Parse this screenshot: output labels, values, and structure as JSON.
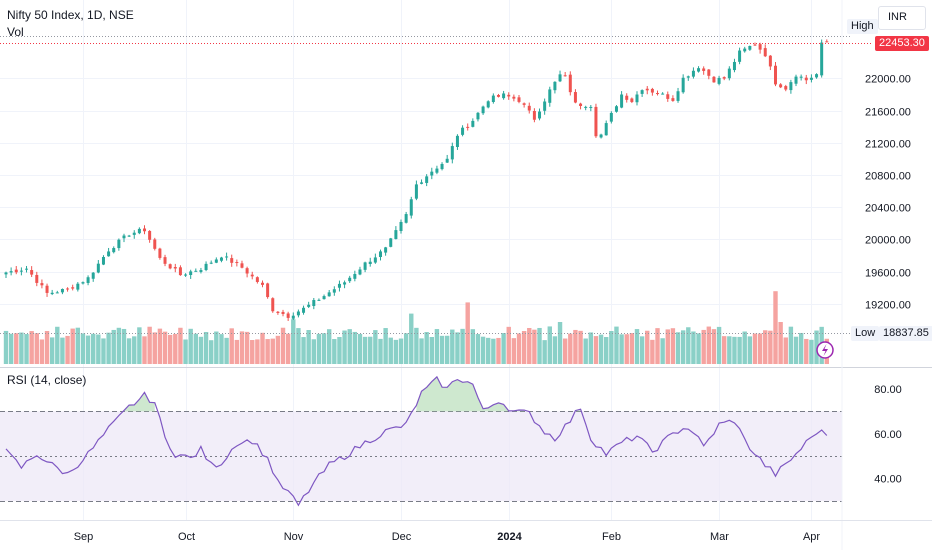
{
  "header": {
    "title": "Nifty 50 Index, 1D, NSE",
    "vol_label": "Vol",
    "rsi_label": "RSI (14, close)",
    "currency": "INR"
  },
  "markers": {
    "high_label": "High",
    "last_price": "22453.30",
    "low_label": "Low",
    "low_price": "18837.85"
  },
  "colors": {
    "up": "#26a69a",
    "down": "#ef5350",
    "vol_up": "#8ad0c7",
    "vol_down": "#f5a3a0",
    "rsi_line": "#7e57c2",
    "rsi_band": "#ede7f6",
    "last_tag": "#f23645"
  },
  "chart_data": [
    {
      "type": "candlestick",
      "price_axis": [
        19200,
        19600,
        20000,
        20400,
        20800,
        21200,
        21600,
        22000
      ],
      "price_axis_labels": [
        "19200.00",
        "19600.00",
        "20000.00",
        "20400.00",
        "20800.00",
        "21200.00",
        "21600.00",
        "22000.00"
      ],
      "ylim": [
        18837.85,
        22526
      ],
      "x_labels": [
        "Sep",
        "Oct",
        "Nov",
        "Dec",
        "2024",
        "Feb",
        "Mar",
        "Apr"
      ],
      "x_label_index": [
        15,
        35,
        56,
        77,
        98,
        118,
        139,
        157
      ],
      "anchors": [
        [
          0,
          19590
        ],
        [
          4,
          19640
        ],
        [
          8,
          19330
        ],
        [
          12,
          19380
        ],
        [
          16,
          19520
        ],
        [
          20,
          19870
        ],
        [
          24,
          20070
        ],
        [
          27,
          20120
        ],
        [
          30,
          19760
        ],
        [
          34,
          19560
        ],
        [
          38,
          19640
        ],
        [
          42,
          19800
        ],
        [
          46,
          19650
        ],
        [
          50,
          19420
        ],
        [
          52,
          19130
        ],
        [
          55,
          19050
        ],
        [
          58,
          19140
        ],
        [
          62,
          19300
        ],
        [
          66,
          19470
        ],
        [
          70,
          19700
        ],
        [
          74,
          19880
        ],
        [
          78,
          20300
        ],
        [
          80,
          20680
        ],
        [
          83,
          20850
        ],
        [
          86,
          20990
        ],
        [
          88,
          21300
        ],
        [
          91,
          21480
        ],
        [
          94,
          21740
        ],
        [
          97,
          21790
        ],
        [
          100,
          21730
        ],
        [
          103,
          21500
        ],
        [
          106,
          21850
        ],
        [
          108,
          22040
        ],
        [
          109,
          22010
        ],
        [
          111,
          21680
        ],
        [
          114,
          21670
        ],
        [
          115,
          21310
        ],
        [
          116,
          21300
        ],
        [
          118,
          21550
        ],
        [
          120,
          21800
        ],
        [
          122,
          21720
        ],
        [
          124,
          21880
        ],
        [
          127,
          21820
        ],
        [
          130,
          21740
        ],
        [
          132,
          22000
        ],
        [
          135,
          22150
        ],
        [
          138,
          21980
        ],
        [
          140,
          22000
        ],
        [
          143,
          22320
        ],
        [
          146,
          22430
        ],
        [
          148,
          22300
        ],
        [
          150,
          21950
        ],
        [
          152,
          21880
        ],
        [
          154,
          22050
        ],
        [
          156,
          21980
        ],
        [
          158,
          22050
        ],
        [
          159,
          22420
        ],
        [
          160,
          22453
        ]
      ],
      "volume_ratio_spikes": [
        [
          56,
          1.6
        ],
        [
          79,
          1.8
        ],
        [
          90,
          2.2
        ],
        [
          108,
          1.5
        ],
        [
          150,
          2.6
        ],
        [
          151,
          1.5
        ]
      ],
      "n_days": 161
    },
    {
      "type": "line",
      "name": "RSI (14, close)",
      "y_axis": [
        40,
        60,
        80
      ],
      "y_axis_labels": [
        "40.00",
        "60.00",
        "80.00"
      ],
      "bands": {
        "upper": 70,
        "middle": 50,
        "lower": 30
      },
      "anchors": [
        [
          0,
          52
        ],
        [
          3,
          45
        ],
        [
          6,
          51
        ],
        [
          9,
          46
        ],
        [
          12,
          42
        ],
        [
          16,
          51
        ],
        [
          20,
          62
        ],
        [
          24,
          72
        ],
        [
          27,
          77
        ],
        [
          29,
          74
        ],
        [
          31,
          58
        ],
        [
          33,
          51
        ],
        [
          36,
          49
        ],
        [
          38,
          53
        ],
        [
          40,
          46
        ],
        [
          42,
          47
        ],
        [
          45,
          56
        ],
        [
          48,
          57
        ],
        [
          51,
          49
        ],
        [
          53,
          38
        ],
        [
          55,
          34
        ],
        [
          57,
          28
        ],
        [
          60,
          38
        ],
        [
          63,
          46
        ],
        [
          66,
          50
        ],
        [
          70,
          56
        ],
        [
          74,
          61
        ],
        [
          78,
          64
        ],
        [
          81,
          78
        ],
        [
          84,
          84
        ],
        [
          86,
          80
        ],
        [
          88,
          85
        ],
        [
          91,
          82
        ],
        [
          93,
          70
        ],
        [
          96,
          75
        ],
        [
          99,
          70
        ],
        [
          102,
          69
        ],
        [
          105,
          61
        ],
        [
          107,
          58
        ],
        [
          110,
          66
        ],
        [
          112,
          72
        ],
        [
          114,
          58
        ],
        [
          117,
          51
        ],
        [
          120,
          56
        ],
        [
          123,
          59
        ],
        [
          126,
          52
        ],
        [
          129,
          58
        ],
        [
          132,
          63
        ],
        [
          134,
          61
        ],
        [
          136,
          54
        ],
        [
          139,
          64
        ],
        [
          142,
          66
        ],
        [
          144,
          57
        ],
        [
          146,
          51
        ],
        [
          148,
          46
        ],
        [
          150,
          42
        ],
        [
          152,
          46
        ],
        [
          154,
          51
        ],
        [
          156,
          56
        ],
        [
          158,
          61
        ],
        [
          160,
          60
        ]
      ]
    }
  ]
}
